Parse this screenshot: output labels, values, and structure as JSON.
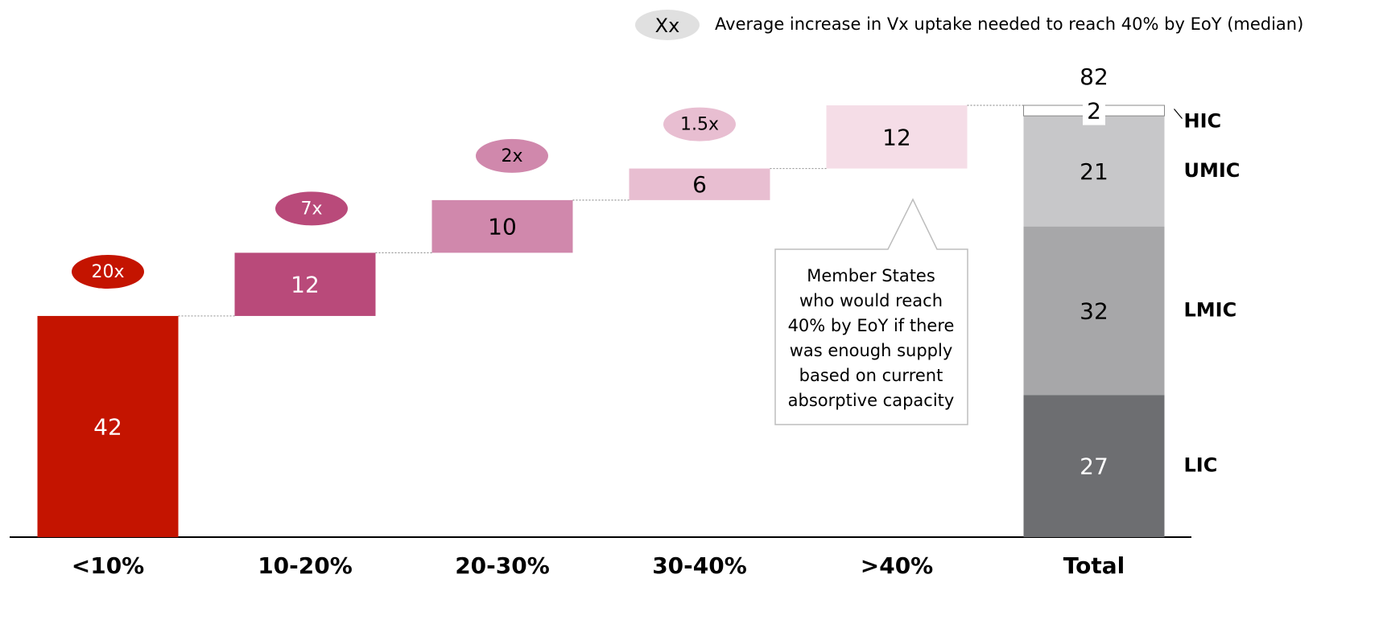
{
  "chart_data": {
    "type": "waterfall",
    "legend": {
      "symbol": "Xx",
      "text": "Average increase in Vx uptake needed to reach 40% by  EoY (median)"
    },
    "categories": [
      "<10%",
      "10-20%",
      "20-30%",
      "30-40%",
      ">40%"
    ],
    "values": [
      42,
      12,
      10,
      6,
      12
    ],
    "colors": [
      "#c41400",
      "#b94a7a",
      "#d088ac",
      "#e8bed1",
      "#f5dde7"
    ],
    "label_colors": [
      "#ffffff",
      "#ffffff",
      "#000000",
      "#000000",
      "#000000"
    ],
    "multipliers": [
      "20x",
      "7x",
      "2x",
      "1.5x"
    ],
    "total": {
      "label": "Total",
      "value": 82,
      "segments": [
        {
          "name": "LIC",
          "value": 27,
          "color": "#6d6e71",
          "label_color": "#ffffff"
        },
        {
          "name": "LMIC",
          "value": 32,
          "color": "#a7a7a9",
          "label_color": "#000000"
        },
        {
          "name": "UMIC",
          "value": 21,
          "color": "#c7c7c9",
          "label_color": "#000000"
        },
        {
          "name": "HIC",
          "value": 2,
          "color": "#ffffff",
          "label_color": "#000000"
        }
      ]
    },
    "callout": [
      "Member States",
      "who would reach",
      "40% by EoY if there",
      "was enough supply",
      "based on current",
      "absorptive capacity"
    ]
  }
}
